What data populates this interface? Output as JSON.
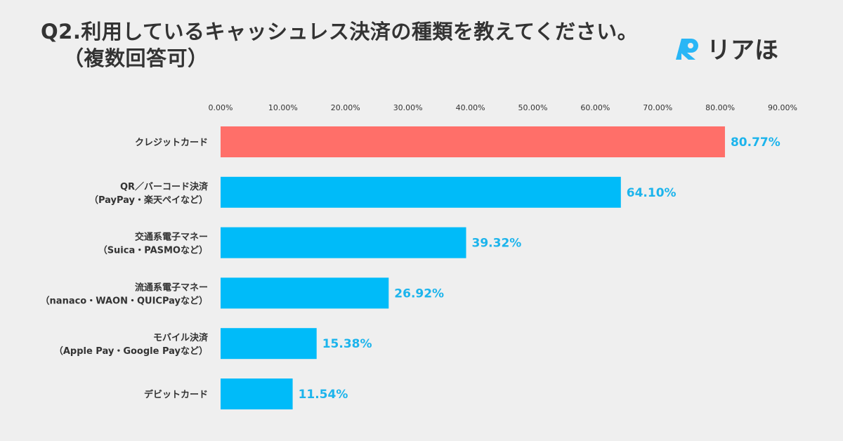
{
  "title": {
    "line1": "Q2.利用しているキャッシュレス決済の種類を教えてください。",
    "line2": "（複数回答可）"
  },
  "logo": {
    "text": "リアほ",
    "mark_color": "#29b6f6"
  },
  "colors": {
    "highlight": "#ff6f69",
    "bar": "#00bbf9",
    "label": "#1cb4ec"
  },
  "chart_data": {
    "type": "bar",
    "orientation": "horizontal",
    "title": "Q2.利用しているキャッシュレス決済の種類を教えてください。（複数回答可）",
    "x_ticks": [
      "0.00%",
      "10.00%",
      "20.00%",
      "30.00%",
      "40.00%",
      "50.00%",
      "60.00%",
      "70.00%",
      "80.00%",
      "90.00%"
    ],
    "xlim": [
      0,
      90
    ],
    "grid": false,
    "categories": [
      [
        "クレジットカード"
      ],
      [
        "QR／バーコード決済",
        "（PayPay・楽天ペイなど）"
      ],
      [
        "交通系電子マネー",
        "（Suica・PASMOなど）"
      ],
      [
        "流通系電子マネー",
        "（nanaco・WAON・QUICPayなど）"
      ],
      [
        "モバイル決済",
        "（Apple Pay・Google Payなど）"
      ],
      [
        "デビットカード"
      ]
    ],
    "values": [
      80.77,
      64.1,
      39.32,
      26.92,
      15.38,
      11.54
    ],
    "value_labels": [
      "80.77%",
      "64.10%",
      "39.32%",
      "26.92%",
      "15.38%",
      "11.54%"
    ],
    "highlight_index": 0
  }
}
